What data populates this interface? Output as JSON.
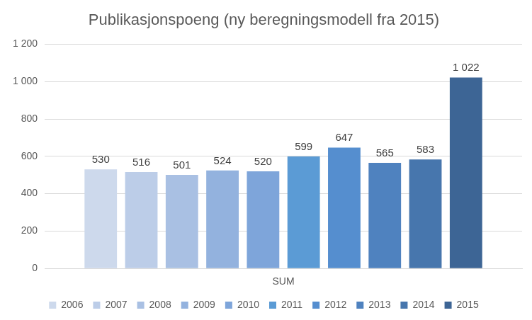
{
  "chart_data": {
    "type": "bar",
    "title": "Publikasjonspoeng (ny beregningsmodell fra 2015)",
    "categories": [
      "SUM"
    ],
    "series": [
      {
        "name": "2006",
        "color": "#cdd9ec",
        "values": [
          530
        ]
      },
      {
        "name": "2007",
        "color": "#bccde8",
        "values": [
          516
        ]
      },
      {
        "name": "2008",
        "color": "#a9c0e3",
        "values": [
          501
        ]
      },
      {
        "name": "2009",
        "color": "#93b2de",
        "values": [
          524
        ]
      },
      {
        "name": "2010",
        "color": "#7ea5da",
        "values": [
          520
        ]
      },
      {
        "name": "2011",
        "color": "#5b9bd5",
        "values": [
          599
        ]
      },
      {
        "name": "2012",
        "color": "#558ecf",
        "values": [
          647
        ]
      },
      {
        "name": "2013",
        "color": "#4f82bf",
        "values": [
          565
        ]
      },
      {
        "name": "2014",
        "color": "#4776ad",
        "values": [
          583
        ]
      },
      {
        "name": "2015",
        "color": "#3d6595",
        "values": [
          1022
        ],
        "value_labels": [
          "1 022"
        ]
      }
    ],
    "ylim": [
      0,
      1200
    ],
    "yticks": [
      0,
      200,
      400,
      600,
      800,
      {
        "value": 1000,
        "label": "1 000"
      },
      {
        "value": 1200,
        "label": "1 200"
      }
    ],
    "grid": true,
    "legend": "bottom",
    "data_labels": true
  }
}
